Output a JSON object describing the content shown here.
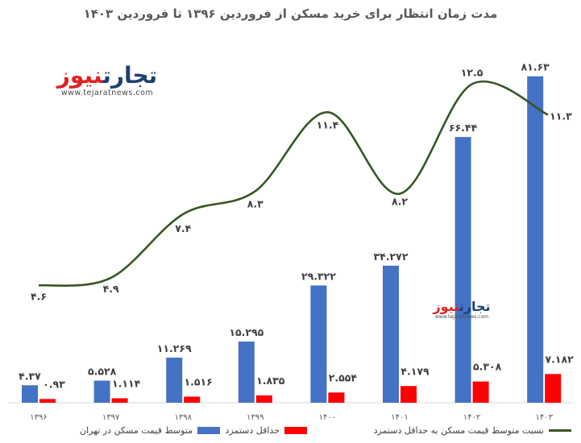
{
  "chart_data": {
    "type": "bar",
    "title": "مدت زمان انتظار برای خرید مسکن از فروردین ۱۳۹۶ تا فروردین ۱۴۰۳",
    "categories": [
      "۱۳۹۶",
      "۱۳۹۷",
      "۱۳۹۸",
      "۱۳۹۹",
      "۱۴۰۰",
      "۱۴۰۱",
      "۱۴۰۲",
      "۱۴۰۳"
    ],
    "series": [
      {
        "name": "متوسط قیمت مسکن در تهران",
        "type": "bar",
        "color": "#4472c4",
        "values": [
          4.37,
          5.528,
          11.269,
          15.295,
          29.322,
          34.272,
          66.44,
          81.63
        ],
        "labels": [
          "۴.۳۷",
          "۵.۵۲۸",
          "۱۱.۲۶۹",
          "۱۵.۲۹۵",
          "۲۹.۳۲۲",
          "۳۴.۲۷۲",
          "۶۶.۴۴",
          "۸۱.۶۳"
        ]
      },
      {
        "name": "حداقل دستمزد",
        "type": "bar",
        "color": "#ff0000",
        "values": [
          0.93,
          1.114,
          1.516,
          1.835,
          2.554,
          4.179,
          5.308,
          7.182
        ],
        "labels": [
          "۰.۹۳",
          "۱.۱۱۴",
          "۱.۵۱۶",
          "۱.۸۳۵",
          "۲.۵۵۴",
          "۴.۱۷۹",
          "۵.۳۰۸",
          "۷.۱۸۲"
        ]
      },
      {
        "name": "نسبت متوسط قیمت مسکن به حداقل دستمزد",
        "type": "line",
        "color": "#375623",
        "axis": "secondary",
        "values": [
          4.6,
          4.9,
          7.4,
          8.3,
          11.4,
          8.2,
          12.5,
          11.3
        ],
        "labels": [
          "۴.۶",
          "۴.۹",
          "۷.۴",
          "۸.۳",
          "۱۱.۴",
          "۸.۲",
          "۱۲.۵",
          "۱۱.۳"
        ]
      }
    ],
    "ylim": [
      0,
      85
    ],
    "y2lim": [
      0,
      13.4
    ],
    "grid": false,
    "legend_position": "bottom"
  },
  "branding": {
    "logo_main_left": "تجارت",
    "logo_main_accent": "نیوز",
    "logo_url": "www.tejaratnews.com"
  }
}
